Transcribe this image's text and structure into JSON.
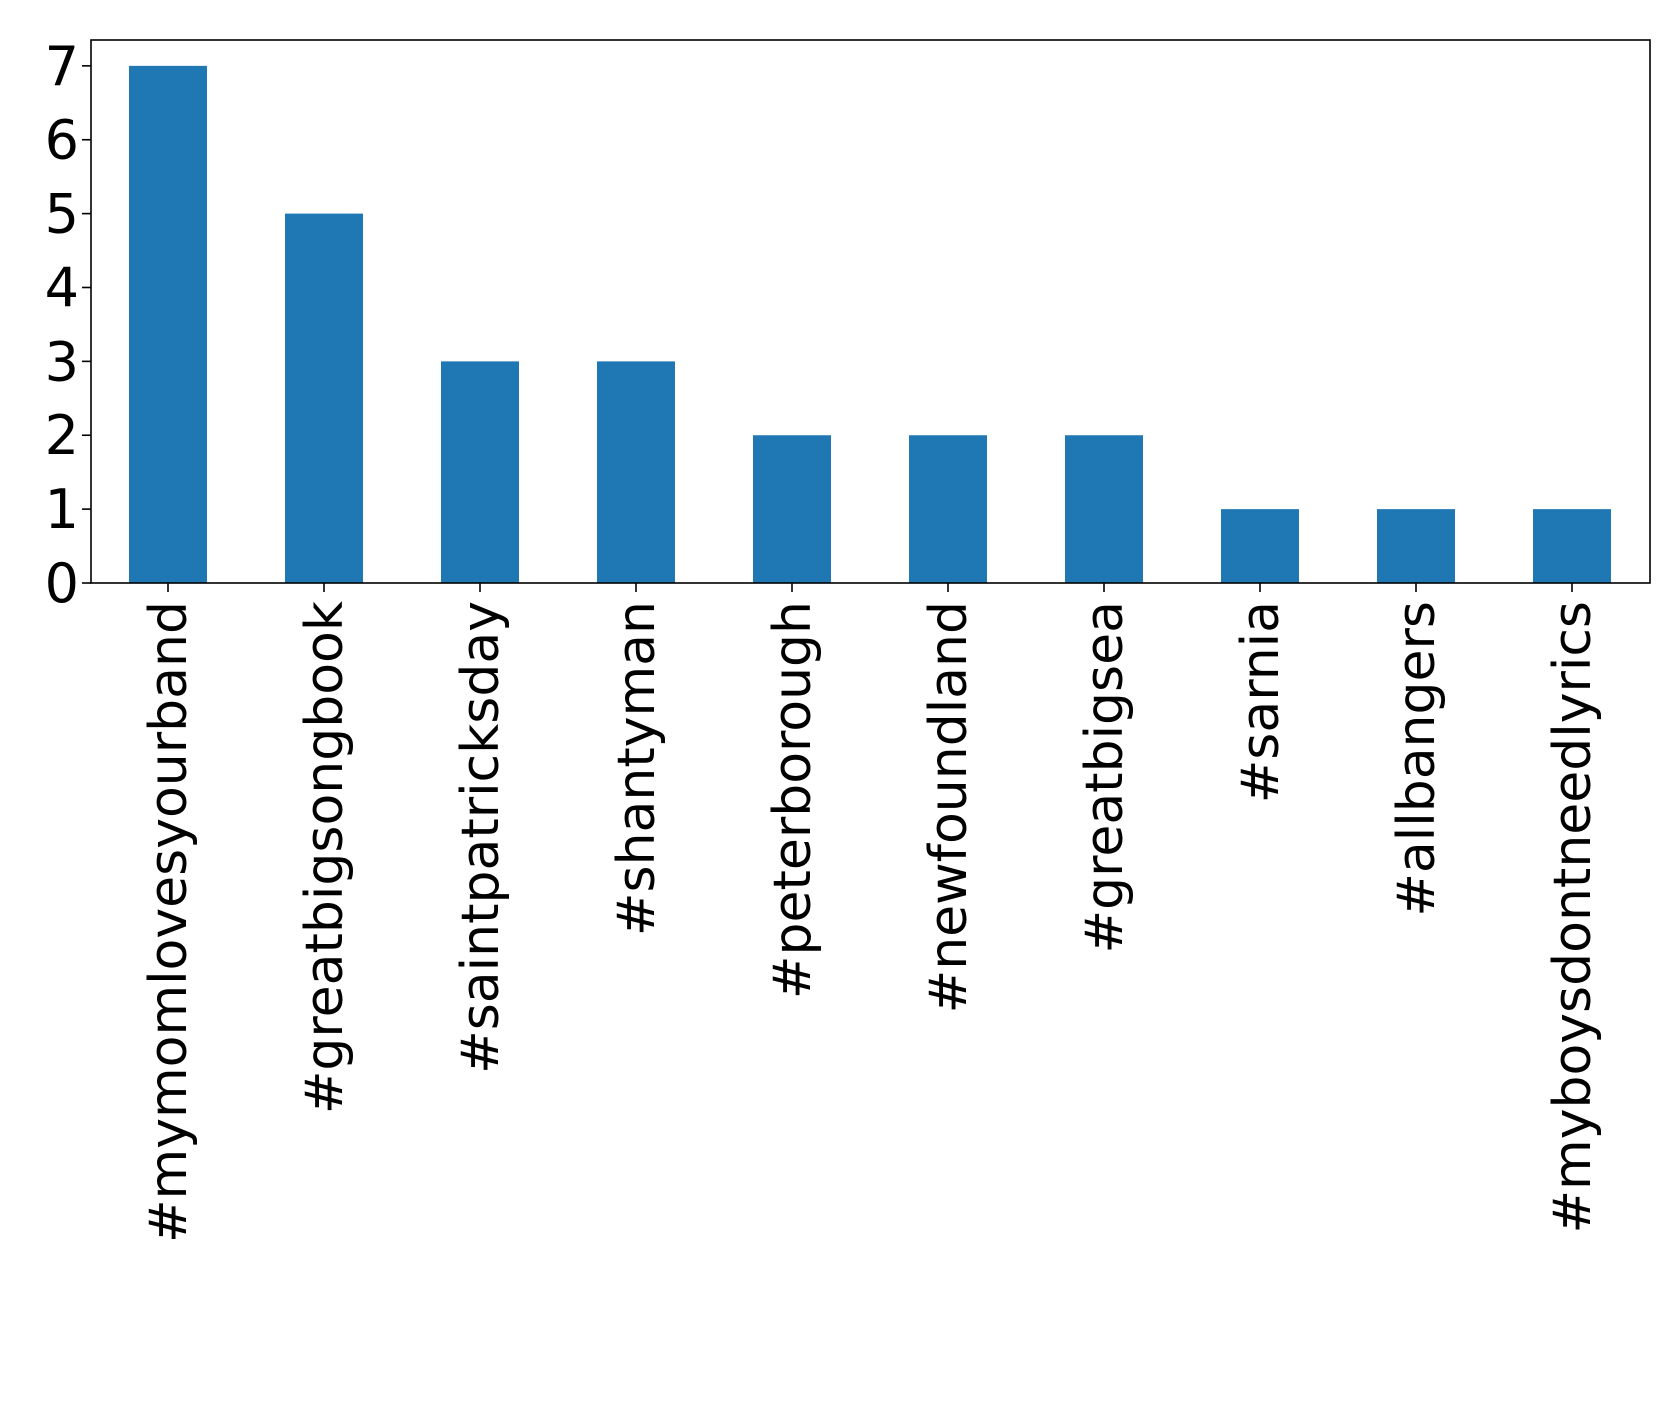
{
  "chart_data": {
    "type": "bar",
    "title": "",
    "xlabel": "",
    "ylabel": "",
    "categories": [
      "#mymomlovesyourband",
      "#greatbigsongbook",
      "#saintpatricksday",
      "#shantyman",
      "#peterborough",
      "#newfoundland",
      "#greatbigsea",
      "#sarnia",
      "#allbangers",
      "#myboysdontneedlyrics"
    ],
    "values": [
      7,
      5,
      3,
      3,
      2,
      2,
      2,
      1,
      1,
      1
    ],
    "ylim": [
      0,
      7.35
    ],
    "yticks": [
      0,
      1,
      2,
      3,
      4,
      5,
      6,
      7
    ],
    "grid": false,
    "legend": "none",
    "bar_color": "#1f77b4"
  }
}
